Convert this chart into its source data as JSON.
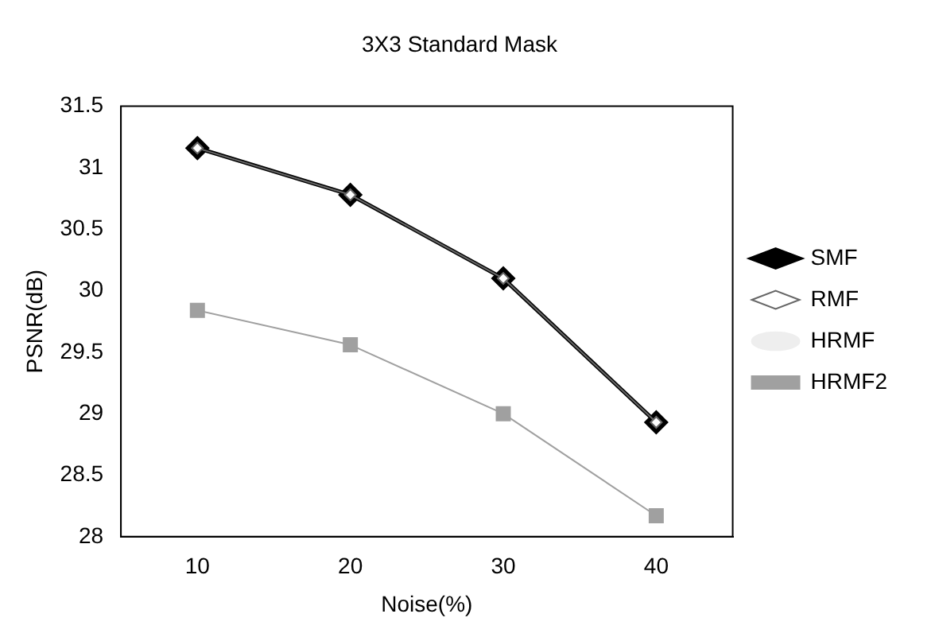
{
  "chart_data": {
    "type": "line",
    "title": "3X3 Standard Mask",
    "xlabel": "Noise(%)",
    "ylabel": "PSNR(dB)",
    "categories": [
      "10",
      "20",
      "30",
      "40"
    ],
    "series": [
      {
        "name": "SMF",
        "color": "#000000",
        "marker": "diamond",
        "values": [
          31.16,
          30.78,
          30.1,
          28.93
        ]
      },
      {
        "name": "RMF",
        "color": "#666666",
        "marker": "diamond",
        "values": [
          31.16,
          30.78,
          30.1,
          28.93
        ]
      },
      {
        "name": "HRMF",
        "color": "#eeeeee",
        "marker": "none",
        "values": [
          null,
          null,
          null,
          null
        ]
      },
      {
        "name": "HRMF2",
        "color": "#a0a0a0",
        "marker": "square",
        "values": [
          29.84,
          29.56,
          29.0,
          28.17
        ]
      }
    ],
    "ylim": [
      28,
      31.5
    ],
    "yticks": [
      28,
      28.5,
      29,
      29.5,
      30,
      30.5,
      31,
      31.5
    ],
    "grid": false,
    "legend": "right"
  }
}
